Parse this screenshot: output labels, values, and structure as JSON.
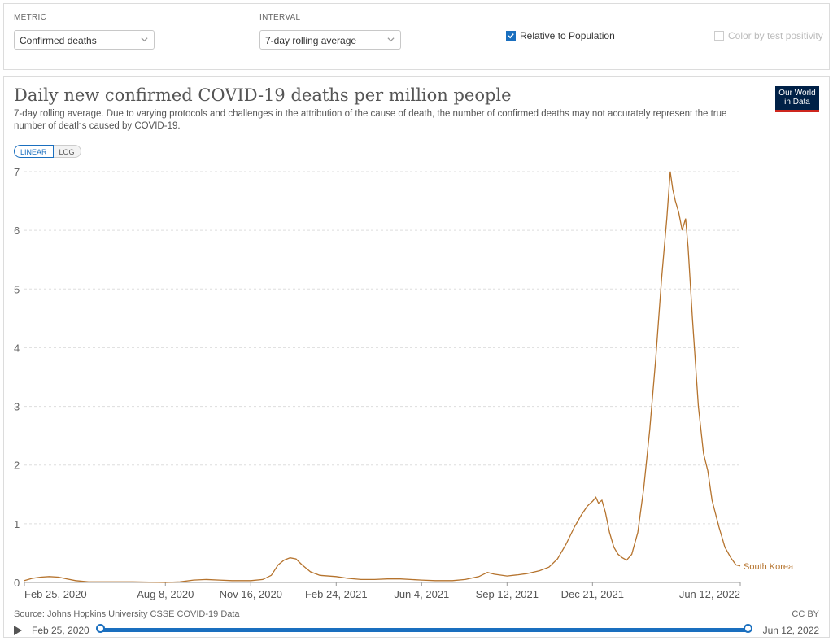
{
  "controls": {
    "metric": {
      "label": "METRIC",
      "value": "Confirmed deaths"
    },
    "interval": {
      "label": "INTERVAL",
      "value": "7-day rolling average"
    },
    "relative_to_population": {
      "label": "Relative to Population",
      "checked": true
    },
    "color_by_test_positivity": {
      "label": "Color by test positivity",
      "checked": false
    }
  },
  "header": {
    "title": "Daily new confirmed COVID-19 deaths per million people",
    "subtitle": "7-day rolling average. Due to varying protocols and challenges in the attribution of the cause of death, the number of confirmed deaths may not accurately represent the true number of deaths caused by COVID-19.",
    "logo_line1": "Our World",
    "logo_line2": "in Data"
  },
  "scale_toggle": {
    "linear": "LINEAR",
    "log": "LOG",
    "active": "LINEAR"
  },
  "chart_data": {
    "type": "line",
    "series": [
      {
        "name": "South Korea",
        "color": "#b5732d",
        "points": [
          [
            "2020-02-25",
            0.03
          ],
          [
            "2020-03-05",
            0.07
          ],
          [
            "2020-03-15",
            0.09
          ],
          [
            "2020-03-25",
            0.1
          ],
          [
            "2020-04-05",
            0.09
          ],
          [
            "2020-04-15",
            0.06
          ],
          [
            "2020-04-25",
            0.03
          ],
          [
            "2020-05-10",
            0.01
          ],
          [
            "2020-06-01",
            0.01
          ],
          [
            "2020-07-01",
            0.01
          ],
          [
            "2020-08-08",
            0.0
          ],
          [
            "2020-08-25",
            0.01
          ],
          [
            "2020-09-10",
            0.04
          ],
          [
            "2020-09-25",
            0.05
          ],
          [
            "2020-10-10",
            0.04
          ],
          [
            "2020-10-25",
            0.03
          ],
          [
            "2020-11-16",
            0.03
          ],
          [
            "2020-11-30",
            0.05
          ],
          [
            "2020-12-10",
            0.12
          ],
          [
            "2020-12-18",
            0.3
          ],
          [
            "2020-12-25",
            0.38
          ],
          [
            "2021-01-01",
            0.42
          ],
          [
            "2021-01-08",
            0.4
          ],
          [
            "2021-01-15",
            0.3
          ],
          [
            "2021-01-25",
            0.18
          ],
          [
            "2021-02-05",
            0.12
          ],
          [
            "2021-02-24",
            0.1
          ],
          [
            "2021-03-10",
            0.07
          ],
          [
            "2021-03-25",
            0.05
          ],
          [
            "2021-04-10",
            0.05
          ],
          [
            "2021-04-25",
            0.06
          ],
          [
            "2021-05-10",
            0.06
          ],
          [
            "2021-06-04",
            0.04
          ],
          [
            "2021-06-20",
            0.03
          ],
          [
            "2021-07-10",
            0.03
          ],
          [
            "2021-07-25",
            0.05
          ],
          [
            "2021-08-10",
            0.1
          ],
          [
            "2021-08-20",
            0.17
          ],
          [
            "2021-08-28",
            0.14
          ],
          [
            "2021-09-12",
            0.11
          ],
          [
            "2021-09-25",
            0.13
          ],
          [
            "2021-10-05",
            0.15
          ],
          [
            "2021-10-20",
            0.2
          ],
          [
            "2021-10-31",
            0.26
          ],
          [
            "2021-11-10",
            0.4
          ],
          [
            "2021-11-20",
            0.65
          ],
          [
            "2021-11-30",
            0.95
          ],
          [
            "2021-12-08",
            1.15
          ],
          [
            "2021-12-15",
            1.3
          ],
          [
            "2021-12-21",
            1.38
          ],
          [
            "2021-12-25",
            1.45
          ],
          [
            "2021-12-28",
            1.35
          ],
          [
            "2022-01-01",
            1.4
          ],
          [
            "2022-01-05",
            1.2
          ],
          [
            "2022-01-10",
            0.85
          ],
          [
            "2022-01-15",
            0.6
          ],
          [
            "2022-01-20",
            0.48
          ],
          [
            "2022-01-25",
            0.42
          ],
          [
            "2022-01-30",
            0.38
          ],
          [
            "2022-02-05",
            0.48
          ],
          [
            "2022-02-12",
            0.85
          ],
          [
            "2022-02-19",
            1.6
          ],
          [
            "2022-02-26",
            2.6
          ],
          [
            "2022-03-05",
            3.8
          ],
          [
            "2022-03-12",
            5.2
          ],
          [
            "2022-03-18",
            6.2
          ],
          [
            "2022-03-22",
            7.0
          ],
          [
            "2022-03-25",
            6.7
          ],
          [
            "2022-03-28",
            6.5
          ],
          [
            "2022-04-01",
            6.3
          ],
          [
            "2022-04-05",
            6.0
          ],
          [
            "2022-04-09",
            6.2
          ],
          [
            "2022-04-12",
            5.7
          ],
          [
            "2022-04-17",
            4.5
          ],
          [
            "2022-04-24",
            3.0
          ],
          [
            "2022-04-30",
            2.2
          ],
          [
            "2022-05-05",
            1.9
          ],
          [
            "2022-05-10",
            1.4
          ],
          [
            "2022-05-18",
            0.95
          ],
          [
            "2022-05-25",
            0.6
          ],
          [
            "2022-06-01",
            0.42
          ],
          [
            "2022-06-07",
            0.3
          ],
          [
            "2022-06-12",
            0.28
          ]
        ]
      }
    ],
    "x_ticks": [
      "Feb 25, 2020",
      "Aug 8, 2020",
      "Nov 16, 2020",
      "Feb 24, 2021",
      "Jun 4, 2021",
      "Sep 12, 2021",
      "Dec 21, 2021",
      "Jun 12, 2022"
    ],
    "y_ticks": [
      0,
      1,
      2,
      3,
      4,
      5,
      6,
      7
    ],
    "ylim": [
      0,
      7
    ],
    "xlim": [
      "2020-02-25",
      "2022-06-12"
    ],
    "grid": true,
    "series_label_placement": "right end of line"
  },
  "footer": {
    "source": "Source: Johns Hopkins University CSSE COVID-19 Data",
    "license": "CC BY"
  },
  "timeline": {
    "start": "Feb 25, 2020",
    "end": "Jun 12, 2022"
  }
}
